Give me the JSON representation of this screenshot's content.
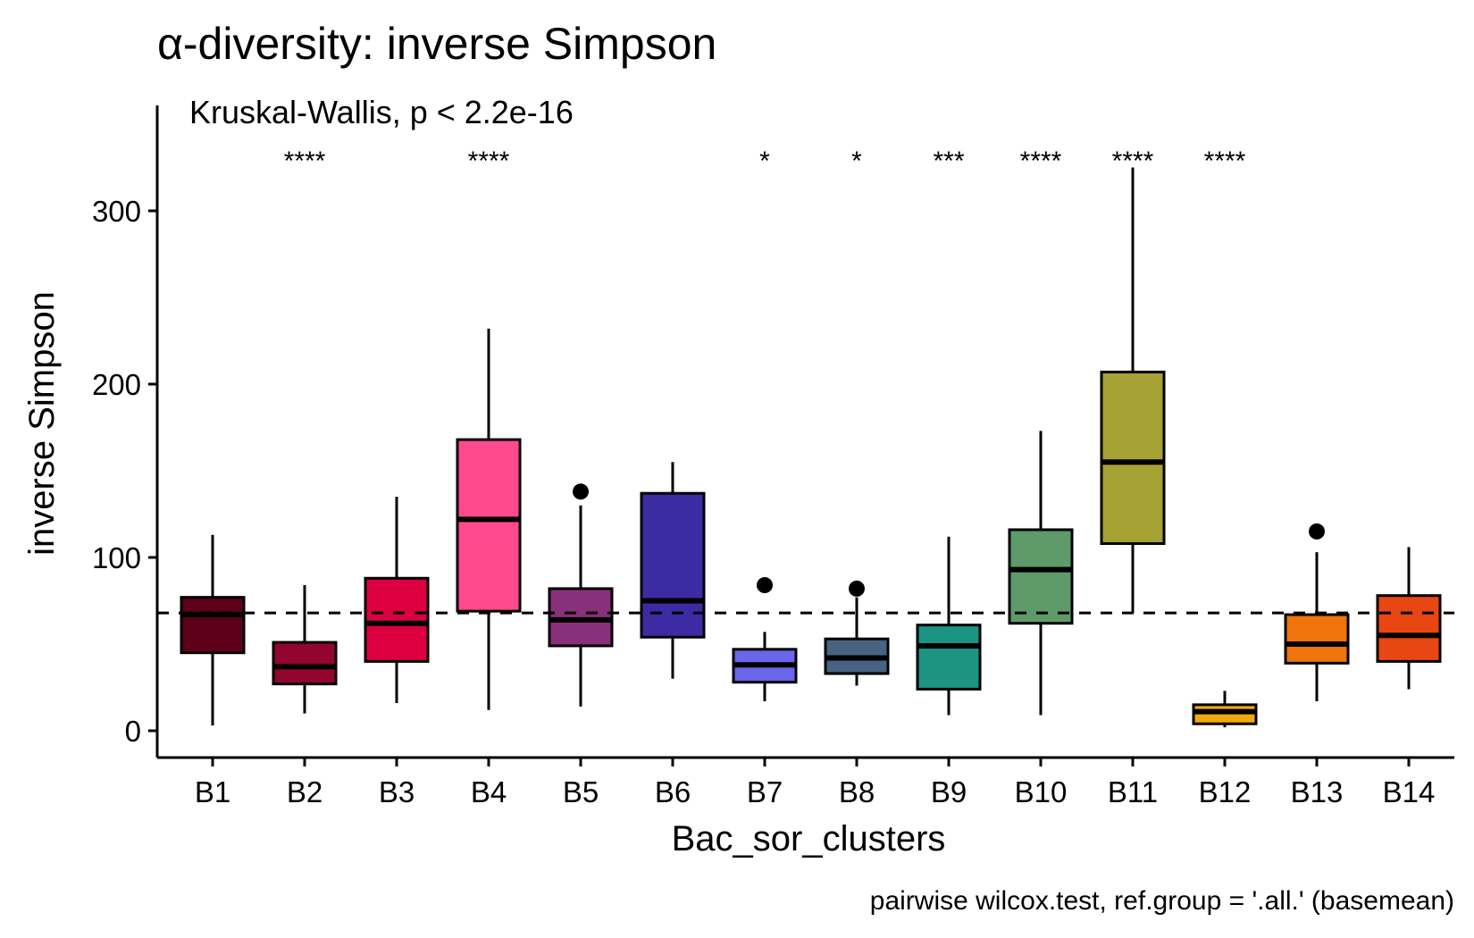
{
  "chart_data": {
    "type": "box",
    "title": "α-diversity: inverse Simpson",
    "xlabel": "Bac_sor_clusters",
    "ylabel": "inverse Simpson",
    "annotation": "Kruskal-Wallis, p < 2.2e-16",
    "caption": "pairwise wilcox.test, ref.group = '.all.' (basemean)",
    "ylim": [
      -15,
      360
    ],
    "yticks": [
      0,
      100,
      200,
      300
    ],
    "reference_line": 68,
    "categories": [
      "B1",
      "B2",
      "B3",
      "B4",
      "B5",
      "B6",
      "B7",
      "B8",
      "B9",
      "B10",
      "B11",
      "B12",
      "B13",
      "B14"
    ],
    "boxes": [
      {
        "label": "B1",
        "whisker_low": 3,
        "q1": 45,
        "median": 67,
        "q3": 77,
        "whisker_high": 113,
        "outliers": [],
        "significance": "",
        "color": "#5E0019"
      },
      {
        "label": "B2",
        "whisker_low": 10,
        "q1": 27,
        "median": 37,
        "q3": 51,
        "whisker_high": 84,
        "outliers": [],
        "significance": "****",
        "color": "#92052E"
      },
      {
        "label": "B3",
        "whisker_low": 16,
        "q1": 40,
        "median": 62,
        "q3": 88,
        "whisker_high": 135,
        "outliers": [],
        "significance": "",
        "color": "#DC0040"
      },
      {
        "label": "B4",
        "whisker_low": 12,
        "q1": 69,
        "median": 122,
        "q3": 168,
        "whisker_high": 232,
        "outliers": [],
        "significance": "****",
        "color": "#FF4A8D"
      },
      {
        "label": "B5",
        "whisker_low": 14,
        "q1": 49,
        "median": 64,
        "q3": 82,
        "whisker_high": 130,
        "outliers": [
          138
        ],
        "significance": "",
        "color": "#883079"
      },
      {
        "label": "B6",
        "whisker_low": 30,
        "q1": 54,
        "median": 75,
        "q3": 137,
        "whisker_high": 155,
        "outliers": [],
        "significance": "",
        "color": "#3D2BA4"
      },
      {
        "label": "B7",
        "whisker_low": 17,
        "q1": 28,
        "median": 38,
        "q3": 47,
        "whisker_high": 57,
        "outliers": [
          84
        ],
        "significance": "*",
        "color": "#6A66E9"
      },
      {
        "label": "B8",
        "whisker_low": 26,
        "q1": 33,
        "median": 42,
        "q3": 53,
        "whisker_high": 77,
        "outliers": [
          82
        ],
        "significance": "*",
        "color": "#476381"
      },
      {
        "label": "B9",
        "whisker_low": 9,
        "q1": 24,
        "median": 49,
        "q3": 61,
        "whisker_high": 112,
        "outliers": [],
        "significance": "***",
        "color": "#1D9384"
      },
      {
        "label": "B10",
        "whisker_low": 9,
        "q1": 62,
        "median": 93,
        "q3": 116,
        "whisker_high": 173,
        "outliers": [],
        "significance": "****",
        "color": "#5E9A6A"
      },
      {
        "label": "B11",
        "whisker_low": 68,
        "q1": 108,
        "median": 155,
        "q3": 207,
        "whisker_high": 325,
        "outliers": [],
        "significance": "****",
        "color": "#A5A133"
      },
      {
        "label": "B12",
        "whisker_low": 2,
        "q1": 4,
        "median": 11,
        "q3": 15,
        "whisker_high": 23,
        "outliers": [],
        "significance": "****",
        "color": "#F1A90F"
      },
      {
        "label": "B13",
        "whisker_low": 17,
        "q1": 39,
        "median": 50,
        "q3": 67,
        "whisker_high": 103,
        "outliers": [
          115
        ],
        "significance": "",
        "color": "#EE740B"
      },
      {
        "label": "B14",
        "whisker_low": 24,
        "q1": 40,
        "median": 55,
        "q3": 78,
        "whisker_high": 106,
        "outliers": [],
        "significance": "",
        "color": "#E84613"
      }
    ]
  }
}
